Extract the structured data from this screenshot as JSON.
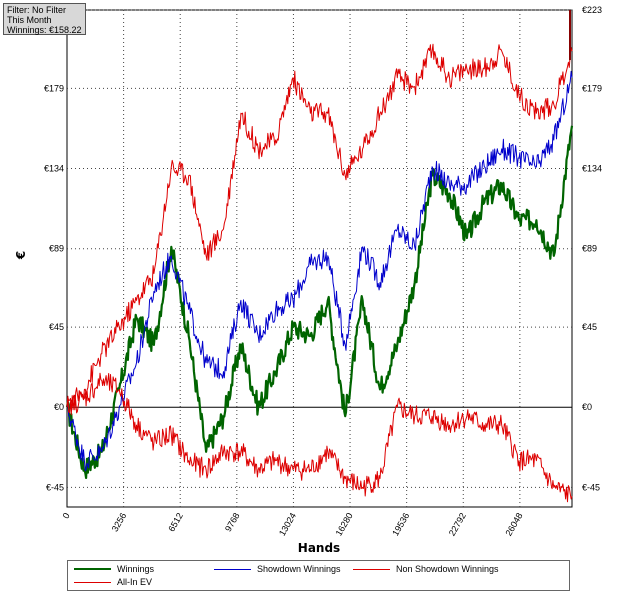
{
  "info": {
    "filter": "Filter: No Filter",
    "period": "This Month",
    "winnings": "Winnings: €158.22"
  },
  "chart_data": {
    "type": "line",
    "xlabel": "Hands",
    "ylabel": "€",
    "xlim": [
      0,
      29046
    ],
    "ylim": [
      -56,
      223
    ],
    "x_ticks": [
      0,
      3256,
      6512,
      9768,
      13024,
      16280,
      19536,
      22792,
      26048
    ],
    "x_tick_labels": [
      "0",
      "3256",
      "6512",
      "9768",
      "13024",
      "16280",
      "19536",
      "22792",
      "26048"
    ],
    "y_ticks": [
      -45,
      0,
      45,
      89,
      134,
      179,
      223
    ],
    "y_tick_labels": [
      "€-45",
      "€0",
      "€45",
      "€89",
      "€134",
      "€179",
      "€223"
    ],
    "grid": true,
    "legend_position": "bottom",
    "x": [
      0,
      1000,
      2000,
      3000,
      4000,
      5000,
      6000,
      7000,
      8000,
      9000,
      10000,
      11000,
      12000,
      13000,
      14000,
      15000,
      16000,
      17000,
      18000,
      19000,
      20000,
      21000,
      22000,
      23000,
      24000,
      25000,
      26000,
      27000,
      28000,
      29046
    ],
    "series": [
      {
        "name": "Winnings",
        "color": "#006400",
        "width": 2.2,
        "values": [
          0,
          -35,
          -25,
          10,
          50,
          35,
          90,
          40,
          -25,
          -5,
          35,
          0,
          20,
          45,
          40,
          60,
          -5,
          60,
          10,
          35,
          70,
          130,
          120,
          95,
          115,
          125,
          105,
          105,
          85,
          158
        ]
      },
      {
        "name": "Showdown Winnings",
        "color": "#0000cc",
        "width": 1,
        "values": [
          0,
          -30,
          -25,
          0,
          25,
          65,
          85,
          55,
          25,
          20,
          60,
          40,
          55,
          60,
          80,
          85,
          35,
          90,
          70,
          100,
          90,
          135,
          125,
          125,
          135,
          145,
          140,
          135,
          150,
          185
        ]
      },
      {
        "name": "Non Showdown Winnings",
        "color": "#dd0000",
        "width": 1,
        "values": [
          0,
          5,
          15,
          10,
          -10,
          -20,
          -15,
          -30,
          -35,
          -25,
          -25,
          -35,
          -30,
          -35,
          -35,
          -25,
          -40,
          -45,
          -40,
          0,
          -5,
          -5,
          -10,
          -5,
          -10,
          -10,
          -30,
          -30,
          -45,
          -50
        ]
      },
      {
        "name": "All-In EV",
        "color": "#dd0000",
        "width": 1,
        "values": [
          0,
          10,
          30,
          45,
          60,
          75,
          135,
          130,
          85,
          100,
          165,
          145,
          150,
          185,
          165,
          165,
          130,
          145,
          165,
          185,
          180,
          200,
          185,
          190,
          190,
          200,
          175,
          165,
          170,
          200
        ]
      }
    ]
  },
  "legend": [
    {
      "label": "Winnings",
      "color": "#006400",
      "width": 2
    },
    {
      "label": "Showdown Winnings",
      "color": "#0000cc",
      "width": 1
    },
    {
      "label": "Non Showdown Winnings",
      "color": "#dd0000",
      "width": 1
    },
    {
      "label": "All-In EV",
      "color": "#dd0000",
      "width": 1
    }
  ]
}
